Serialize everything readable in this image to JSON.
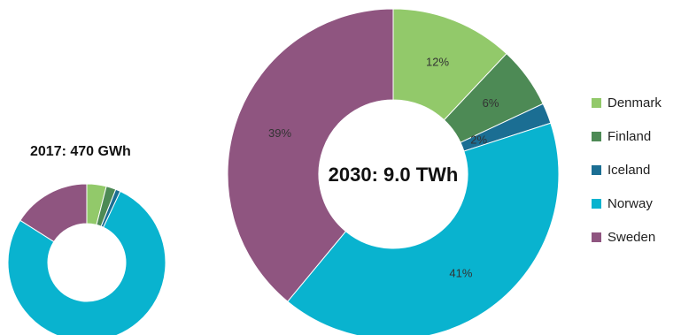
{
  "chart_data": [
    {
      "type": "pie",
      "variant": "donut",
      "title": "2017: 470 GWh",
      "categories": [
        "Denmark",
        "Finland",
        "Iceland",
        "Norway",
        "Sweden"
      ],
      "values": [
        4,
        2,
        1,
        77,
        16
      ],
      "data_labels": [
        "",
        "",
        "",
        "",
        ""
      ]
    },
    {
      "type": "pie",
      "variant": "donut",
      "title": "2030: 9.0 TWh",
      "categories": [
        "Denmark",
        "Finland",
        "Iceland",
        "Norway",
        "Sweden"
      ],
      "values": [
        12,
        6,
        2,
        41,
        39
      ],
      "data_labels": [
        "12%",
        "6%",
        "2%",
        "41%",
        "39%"
      ]
    }
  ],
  "colors": {
    "Denmark": "#92c96a",
    "Finland": "#4d8a55",
    "Iceland": "#1b6e93",
    "Norway": "#09b3cf",
    "Sweden": "#8f5580"
  },
  "legend": {
    "position": "right",
    "items": [
      "Denmark",
      "Finland",
      "Iceland",
      "Norway",
      "Sweden"
    ]
  }
}
